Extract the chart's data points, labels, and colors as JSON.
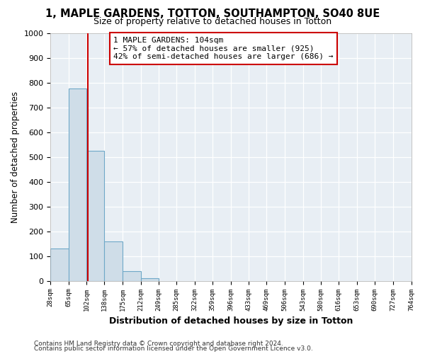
{
  "title": "1, MAPLE GARDENS, TOTTON, SOUTHAMPTON, SO40 8UE",
  "subtitle": "Size of property relative to detached houses in Totton",
  "xlabel": "Distribution of detached houses by size in Totton",
  "ylabel": "Number of detached properties",
  "footer_line1": "Contains HM Land Registry data © Crown copyright and database right 2024.",
  "footer_line2": "Contains public sector information licensed under the Open Government Licence v3.0.",
  "bin_edges": [
    28,
    65,
    102,
    138,
    175,
    212,
    249,
    285,
    322,
    359,
    396,
    433,
    469,
    506,
    543,
    580,
    616,
    653,
    690,
    727,
    764
  ],
  "bar_heights": [
    130,
    775,
    525,
    158,
    40,
    10,
    0,
    0,
    0,
    0,
    0,
    0,
    0,
    0,
    0,
    0,
    0,
    0,
    0,
    0
  ],
  "bar_color": "#cfdde8",
  "bar_edge_color": "#6fa8c8",
  "property_size": 104,
  "property_line_color": "#cc0000",
  "annotation_line1": "1 MAPLE GARDENS: 104sqm",
  "annotation_line2": "← 57% of detached houses are smaller (925)",
  "annotation_line3": "42% of semi-detached houses are larger (686) →",
  "annotation_box_color": "#ffffff",
  "annotation_box_edge_color": "#cc0000",
  "ylim": [
    0,
    1000
  ],
  "yticks": [
    0,
    100,
    200,
    300,
    400,
    500,
    600,
    700,
    800,
    900,
    1000
  ],
  "tick_labels": [
    "28sqm",
    "65sqm",
    "102sqm",
    "138sqm",
    "175sqm",
    "212sqm",
    "249sqm",
    "285sqm",
    "322sqm",
    "359sqm",
    "396sqm",
    "433sqm",
    "469sqm",
    "506sqm",
    "543sqm",
    "580sqm",
    "616sqm",
    "653sqm",
    "690sqm",
    "727sqm",
    "764sqm"
  ],
  "bg_color": "#ffffff",
  "plot_bg_color": "#e8eef4",
  "grid_color": "#ffffff",
  "title_fontsize": 10.5,
  "subtitle_fontsize": 9
}
